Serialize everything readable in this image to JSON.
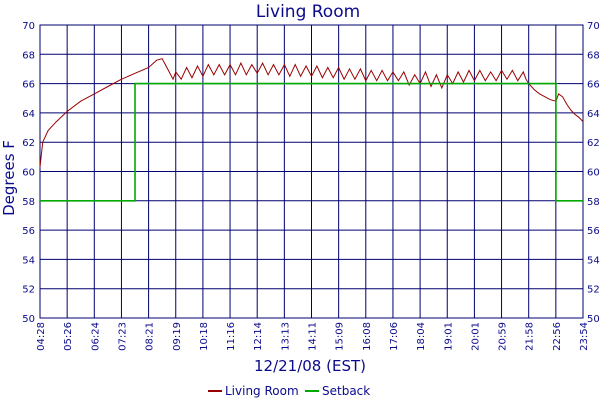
{
  "chart_data": {
    "type": "line",
    "title": "Living Room",
    "xlabel": "12/21/08 (EST)",
    "ylabel": "Degrees F",
    "ylim": [
      50,
      70
    ],
    "yticks": [
      50,
      52,
      54,
      56,
      58,
      60,
      62,
      64,
      66,
      68,
      70
    ],
    "x_categories": [
      "04:28",
      "05:26",
      "06:24",
      "07:23",
      "08:21",
      "09:19",
      "10:18",
      "11:16",
      "12:14",
      "13:13",
      "14:11",
      "15:09",
      "16:08",
      "17:06",
      "18:04",
      "19:01",
      "20:01",
      "20:59",
      "21:58",
      "22:56",
      "23:54"
    ],
    "grid": true,
    "legend_position": "bottom",
    "colors": {
      "living_room": "#990000",
      "setback": "#00aa00",
      "grid": "#000070",
      "text": "#0a0a8c"
    },
    "series": [
      {
        "name": "Living Room",
        "points": [
          [
            0,
            60.3
          ],
          [
            0.1,
            62.0
          ],
          [
            0.3,
            62.8
          ],
          [
            0.6,
            63.4
          ],
          [
            1.0,
            64.1
          ],
          [
            1.5,
            64.8
          ],
          [
            2.0,
            65.3
          ],
          [
            2.5,
            65.8
          ],
          [
            3.0,
            66.3
          ],
          [
            3.5,
            66.7
          ],
          [
            4.0,
            67.1
          ],
          [
            4.3,
            67.6
          ],
          [
            4.5,
            67.7
          ],
          [
            4.7,
            67.0
          ],
          [
            4.9,
            66.3
          ],
          [
            5.0,
            66.8
          ],
          [
            5.2,
            66.3
          ],
          [
            5.4,
            67.1
          ],
          [
            5.6,
            66.4
          ],
          [
            5.8,
            67.2
          ],
          [
            6.0,
            66.5
          ],
          [
            6.2,
            67.3
          ],
          [
            6.4,
            66.6
          ],
          [
            6.6,
            67.3
          ],
          [
            6.8,
            66.6
          ],
          [
            7.0,
            67.3
          ],
          [
            7.2,
            66.6
          ],
          [
            7.4,
            67.4
          ],
          [
            7.6,
            66.6
          ],
          [
            7.8,
            67.3
          ],
          [
            8.0,
            66.7
          ],
          [
            8.2,
            67.4
          ],
          [
            8.4,
            66.6
          ],
          [
            8.6,
            67.3
          ],
          [
            8.8,
            66.6
          ],
          [
            9.0,
            67.3
          ],
          [
            9.2,
            66.5
          ],
          [
            9.4,
            67.3
          ],
          [
            9.6,
            66.5
          ],
          [
            9.8,
            67.2
          ],
          [
            10.0,
            66.5
          ],
          [
            10.2,
            67.2
          ],
          [
            10.4,
            66.4
          ],
          [
            10.6,
            67.1
          ],
          [
            10.8,
            66.4
          ],
          [
            11.0,
            67.1
          ],
          [
            11.2,
            66.3
          ],
          [
            11.4,
            67.0
          ],
          [
            11.6,
            66.3
          ],
          [
            11.8,
            67.0
          ],
          [
            12.0,
            66.2
          ],
          [
            12.2,
            66.9
          ],
          [
            12.4,
            66.2
          ],
          [
            12.6,
            66.9
          ],
          [
            12.8,
            66.2
          ],
          [
            13.0,
            66.8
          ],
          [
            13.2,
            66.2
          ],
          [
            13.4,
            66.8
          ],
          [
            13.6,
            65.9
          ],
          [
            13.8,
            66.6
          ],
          [
            14.0,
            66.0
          ],
          [
            14.2,
            66.8
          ],
          [
            14.4,
            65.8
          ],
          [
            14.6,
            66.6
          ],
          [
            14.8,
            65.7
          ],
          [
            15.0,
            66.6
          ],
          [
            15.2,
            66.0
          ],
          [
            15.4,
            66.8
          ],
          [
            15.6,
            66.1
          ],
          [
            15.8,
            66.9
          ],
          [
            16.0,
            66.2
          ],
          [
            16.2,
            66.9
          ],
          [
            16.4,
            66.2
          ],
          [
            16.6,
            66.8
          ],
          [
            16.8,
            66.2
          ],
          [
            17.0,
            66.9
          ],
          [
            17.2,
            66.3
          ],
          [
            17.4,
            66.9
          ],
          [
            17.6,
            66.2
          ],
          [
            17.8,
            66.8
          ],
          [
            17.9,
            66.3
          ],
          [
            18.0,
            66.0
          ],
          [
            18.2,
            65.6
          ],
          [
            18.4,
            65.3
          ],
          [
            18.6,
            65.1
          ],
          [
            18.8,
            64.9
          ],
          [
            19.0,
            64.8
          ],
          [
            19.1,
            65.3
          ],
          [
            19.25,
            65.1
          ],
          [
            19.4,
            64.6
          ],
          [
            19.55,
            64.2
          ],
          [
            19.7,
            63.9
          ],
          [
            19.85,
            63.7
          ],
          [
            20.0,
            63.4
          ]
        ]
      },
      {
        "name": "Setback",
        "points": [
          [
            0,
            58
          ],
          [
            3.5,
            58
          ],
          [
            3.5,
            66
          ],
          [
            19.0,
            66
          ],
          [
            19.0,
            58
          ],
          [
            20.0,
            58
          ]
        ]
      }
    ]
  }
}
